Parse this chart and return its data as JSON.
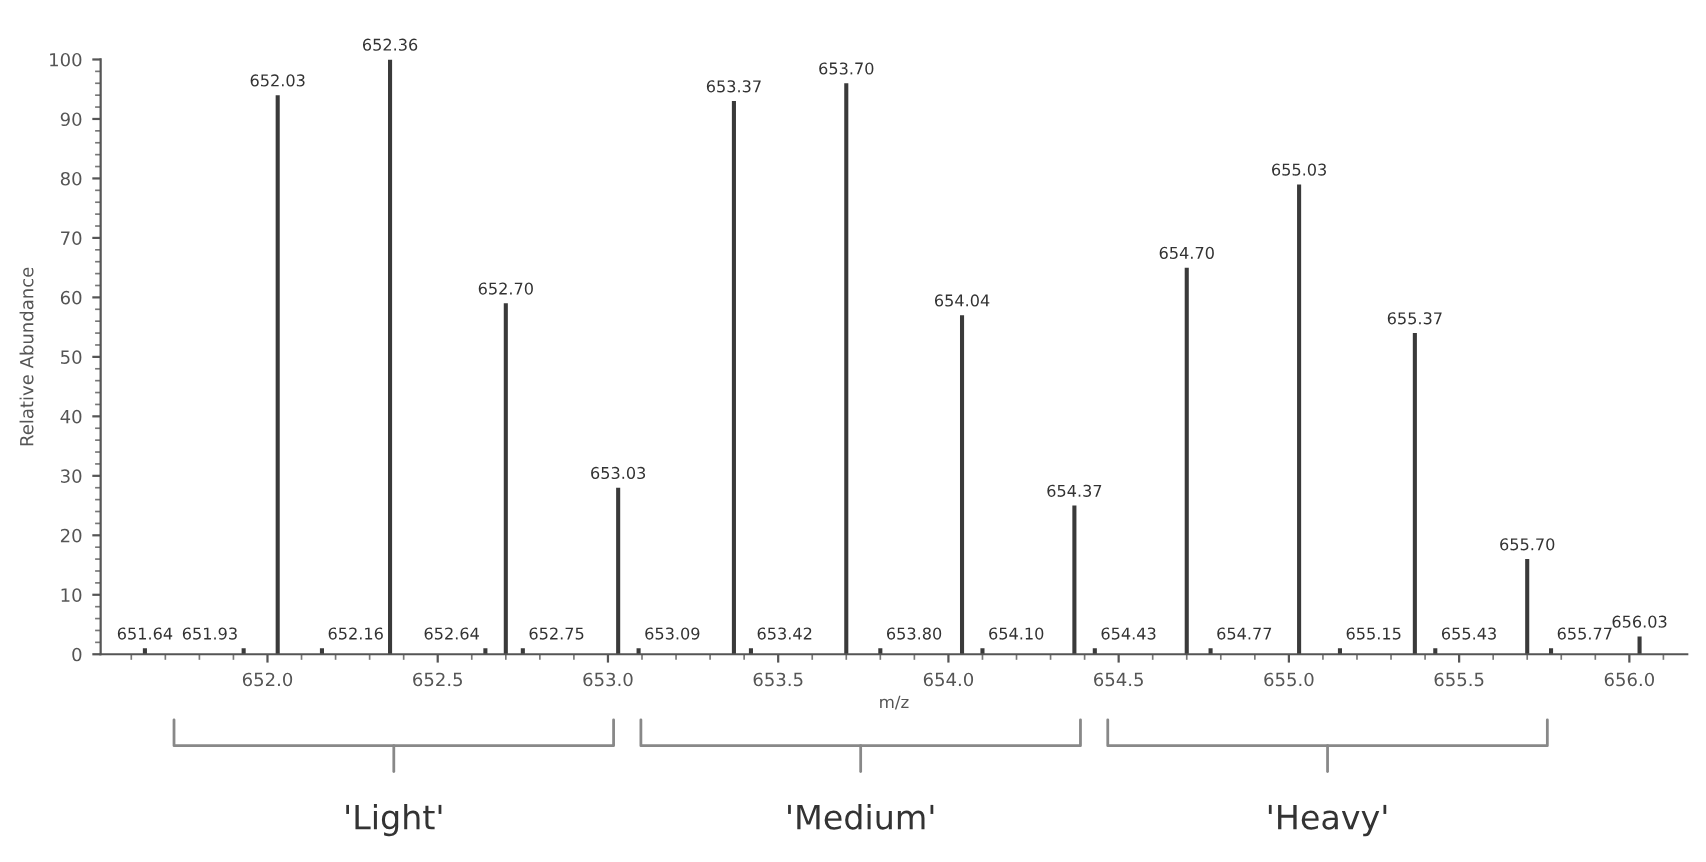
{
  "chart_data": {
    "type": "bar",
    "xlabel": "m/z",
    "ylabel": "Relative Abundance",
    "x": [
      651.64,
      651.93,
      652.03,
      652.16,
      652.36,
      652.64,
      652.7,
      652.75,
      653.03,
      653.09,
      653.37,
      653.42,
      653.7,
      653.8,
      654.04,
      654.1,
      654.37,
      654.43,
      654.7,
      654.77,
      655.03,
      655.15,
      655.37,
      655.43,
      655.7,
      655.77,
      656.03
    ],
    "values": [
      1,
      1,
      94,
      1,
      100,
      1,
      59,
      1,
      28,
      1,
      93,
      1,
      96,
      1,
      57,
      1,
      25,
      1,
      65,
      1,
      79,
      1,
      54,
      1,
      16,
      1,
      3
    ],
    "color": "#3a3a3a",
    "xlim": [
      651.51,
      656.17
    ],
    "ylim": [
      0,
      100
    ],
    "xticks": [
      {
        "value": 652,
        "label": "652.0"
      },
      {
        "value": 652.5,
        "label": "652.5"
      },
      {
        "value": 653,
        "label": "653.0"
      },
      {
        "value": 653.5,
        "label": "653.5"
      },
      {
        "value": 654,
        "label": "654.0"
      },
      {
        "value": 654.5,
        "label": "654.5"
      },
      {
        "value": 655,
        "label": "655.0"
      },
      {
        "value": 655.5,
        "label": "655.5"
      },
      {
        "value": 656,
        "label": "656.0"
      }
    ],
    "yticks": [
      0,
      10,
      20,
      30,
      40,
      50,
      60,
      70,
      80,
      90,
      100
    ],
    "annotations": [
      "'Light'",
      "'Medium'",
      "'Heavy'",
      {
        "text": "651.64",
        "x": 651.64,
        "y": 1
      },
      {
        "text": "651.93",
        "x": 651.93,
        "y": 1
      },
      {
        "text": "652.03",
        "x": 652.03,
        "y": 94
      },
      {
        "text": "652.16",
        "x": 652.16,
        "y": 1
      },
      {
        "text": "652.36",
        "x": 652.36,
        "y": 100
      },
      {
        "text": "652.64",
        "x": 652.64,
        "y": 1
      },
      {
        "text": "652.70",
        "x": 652.7,
        "y": 59
      },
      {
        "text": "652.75",
        "x": 652.75,
        "y": 1
      },
      {
        "text": "653.03",
        "x": 653.03,
        "y": 28
      },
      {
        "text": "653.09",
        "x": 653.09,
        "y": 1
      },
      {
        "text": "653.37",
        "x": 653.37,
        "y": 93
      },
      {
        "text": "653.42",
        "x": 653.42,
        "y": 1
      },
      {
        "text": "653.70",
        "x": 653.7,
        "y": 96
      },
      {
        "text": "653.80",
        "x": 653.8,
        "y": 1
      },
      {
        "text": "654.04",
        "x": 654.04,
        "y": 57
      },
      {
        "text": "654.10",
        "x": 654.1,
        "y": 1
      },
      {
        "text": "654.37",
        "x": 654.37,
        "y": 25
      },
      {
        "text": "654.43",
        "x": 654.43,
        "y": 1
      },
      {
        "text": "654.70",
        "x": 654.7,
        "y": 65
      },
      {
        "text": "654.77",
        "x": 654.77,
        "y": 1
      },
      {
        "text": "655.03",
        "x": 655.03,
        "y": 79
      },
      {
        "text": "655.15",
        "x": 655.15,
        "y": 1
      },
      {
        "text": "655.37",
        "x": 655.37,
        "y": 54
      },
      {
        "text": "655.43",
        "x": 655.43,
        "y": 1
      },
      {
        "text": "655.70",
        "x": 655.7,
        "y": 16
      },
      {
        "text": "655.77",
        "x": 655.77,
        "y": 1
      },
      {
        "text": "656.03",
        "x": 656.03,
        "y": 3
      }
    ],
    "grid": false
  }
}
